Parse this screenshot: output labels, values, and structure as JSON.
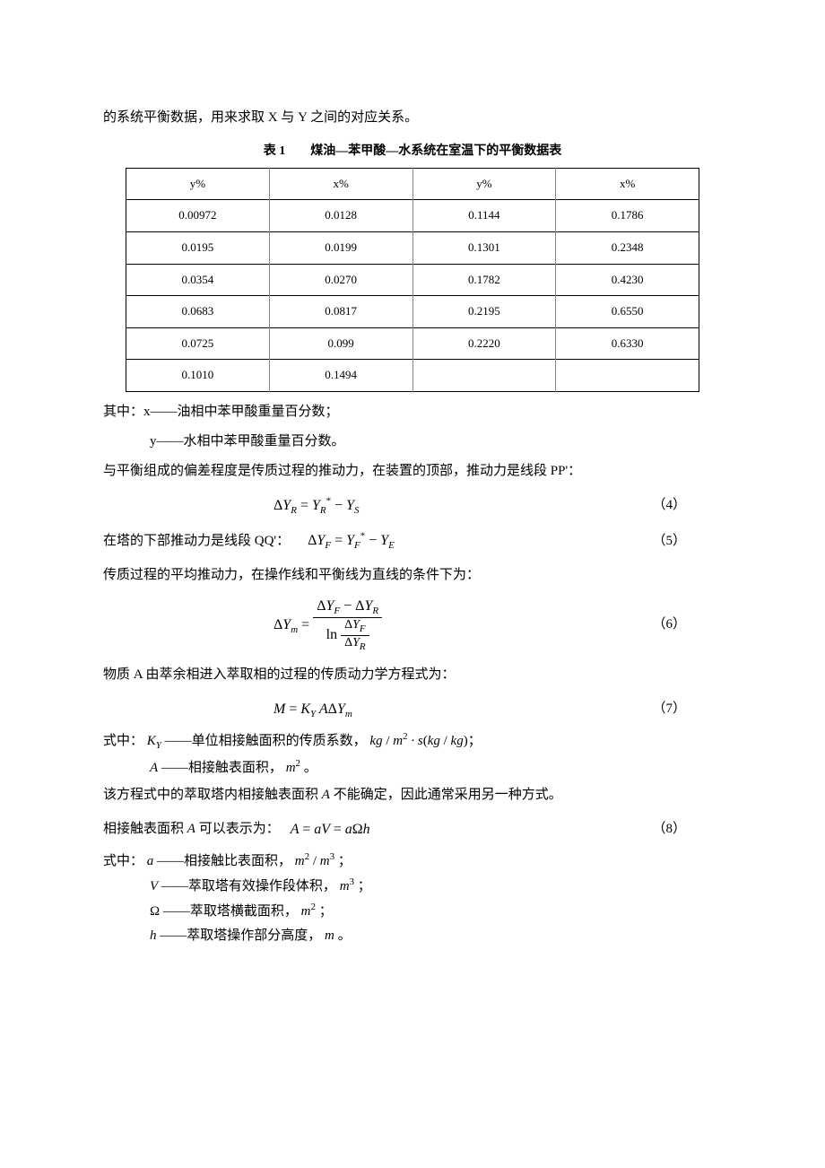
{
  "top_line": "的系统平衡数据，用来求取 X 与 Y 之间的对应关系。",
  "table_caption": "表 1　　煤油—苯甲酸—水系统在室温下的平衡数据表",
  "table": {
    "headers": [
      "y%",
      "x%",
      "y%",
      "x%"
    ],
    "rows": [
      [
        "0.00972",
        "0.0128",
        "0.1144",
        "0.1786"
      ],
      [
        "0.0195",
        "0.0199",
        "0.1301",
        "0.2348"
      ],
      [
        "0.0354",
        "0.0270",
        "0.1782",
        "0.4230"
      ],
      [
        "0.0683",
        "0.0817",
        "0.2195",
        "0.6550"
      ],
      [
        "0.0725",
        "0.099",
        "0.2220",
        "0.6330"
      ],
      [
        "0.1010",
        "0.1494",
        "",
        ""
      ]
    ]
  },
  "defs": {
    "lead": "其中：x——油相中苯甲酸重量百分数；",
    "y": "y——水相中苯甲酸重量百分数。"
  },
  "p_drive": "与平衡组成的偏差程度是传质过程的推动力，在装置的顶部，推动力是线段 PP'：",
  "eq4": {
    "body": "ΔY_R = Y_R* − Y_S",
    "num": "（4）"
  },
  "p_bottom_lead": "在塔的下部推动力是线段 QQ'：",
  "eq5": {
    "body": "ΔY_F = Y_F* − Y_E",
    "num": "（5）"
  },
  "p_avg": "传质过程的平均推动力，在操作线和平衡线为直线的条件下为：",
  "eq6": {
    "num": "（6）"
  },
  "p_kinetics": "物质 A 由萃余相进入萃取相的过程的传质动力学方程式为：",
  "eq7": {
    "body": "M = K_Y AΔY_m",
    "num": "（7）"
  },
  "def_ky_lead": "式中：",
  "def_ky": "——单位相接触面积的传质系数，",
  "def_ky_unit": "kg / m² · s(kg / kg)；",
  "def_A": "——相接触表面积，",
  "def_A_unit": "m² 。",
  "p_unknownA": "该方程式中的萃取塔内相接触表面积 <span class=\"mathit\">A</span> 不能确定，因此通常采用另一种方式。",
  "p_A_expr_lead": "相接触表面积 <span class=\"mathit\">A</span> 可以表示为：",
  "eq8": {
    "body": "A = aV = aΩh",
    "num": "（8）"
  },
  "def2_lead": "式中：",
  "def_a": "——相接触比表面积，",
  "def_a_unit": "m² / m³ ；",
  "def_V": "——萃取塔有效操作段体积，",
  "def_V_unit": "m³ ；",
  "def_Omega": "——萃取塔横截面积，",
  "def_Omega_unit": "m² ；",
  "def_h": "——萃取塔操作部分高度，",
  "def_h_unit": "m 。"
}
